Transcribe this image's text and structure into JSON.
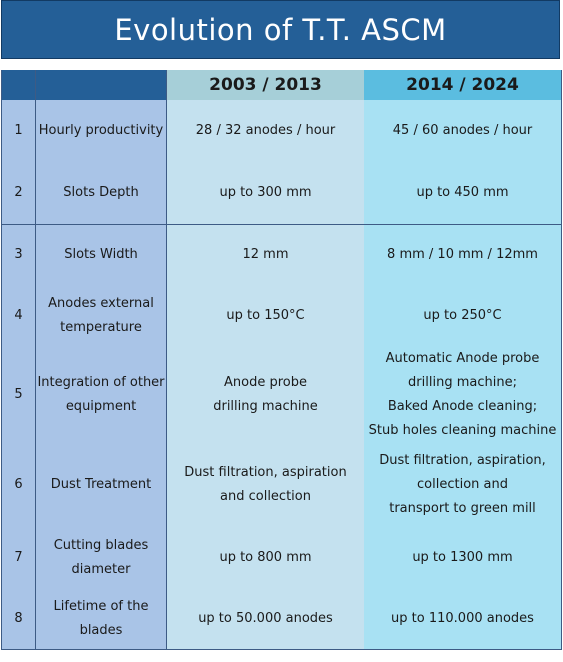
{
  "title": "Evolution of  T.T. ASCM",
  "header": {
    "num": "",
    "label": "",
    "col_a": "2003 / 2013",
    "col_b": "2014 / 2024"
  },
  "rows": [
    {
      "num": "1",
      "label": [
        "Hourly productivity"
      ],
      "a": [
        "28 / 32  anodes / hour"
      ],
      "b": [
        "45 / 60  anodes / hour"
      ]
    },
    {
      "num": "2",
      "label": [
        "Slots  Depth"
      ],
      "a": [
        "up to 300 mm"
      ],
      "b": [
        "up to 450 mm"
      ]
    },
    {
      "num": "3",
      "label": [
        "Slots Width"
      ],
      "a": [
        "12 mm"
      ],
      "b": [
        "8 mm /  10 mm /  12mm"
      ]
    },
    {
      "num": "4",
      "label": [
        "Anodes external",
        "temperature"
      ],
      "a": [
        "up to 150°C"
      ],
      "b": [
        "up to 250°C"
      ]
    },
    {
      "num": "5",
      "label": [
        "Integration of other",
        "equipment"
      ],
      "a": [
        "Anode probe",
        "drilling machine"
      ],
      "b": [
        "Automatic Anode probe",
        "drilling machine;",
        "Baked Anode cleaning;",
        "Stub holes cleaning machine"
      ]
    },
    {
      "num": "6",
      "label": [
        "Dust Treatment"
      ],
      "a": [
        "Dust filtration, aspiration",
        "and collection"
      ],
      "b": [
        "Dust filtration, aspiration,",
        "collection and",
        "transport to green mill"
      ]
    },
    {
      "num": "7",
      "label": [
        "Cutting blades",
        "diameter"
      ],
      "a": [
        "up to 800 mm"
      ],
      "b": [
        "up to 1300 mm"
      ]
    },
    {
      "num": "8",
      "label": [
        "Lifetime of the",
        "blades"
      ],
      "a": [
        "up to 50.000 anodes"
      ],
      "b": [
        "up to 110.000 anodes"
      ]
    }
  ]
}
